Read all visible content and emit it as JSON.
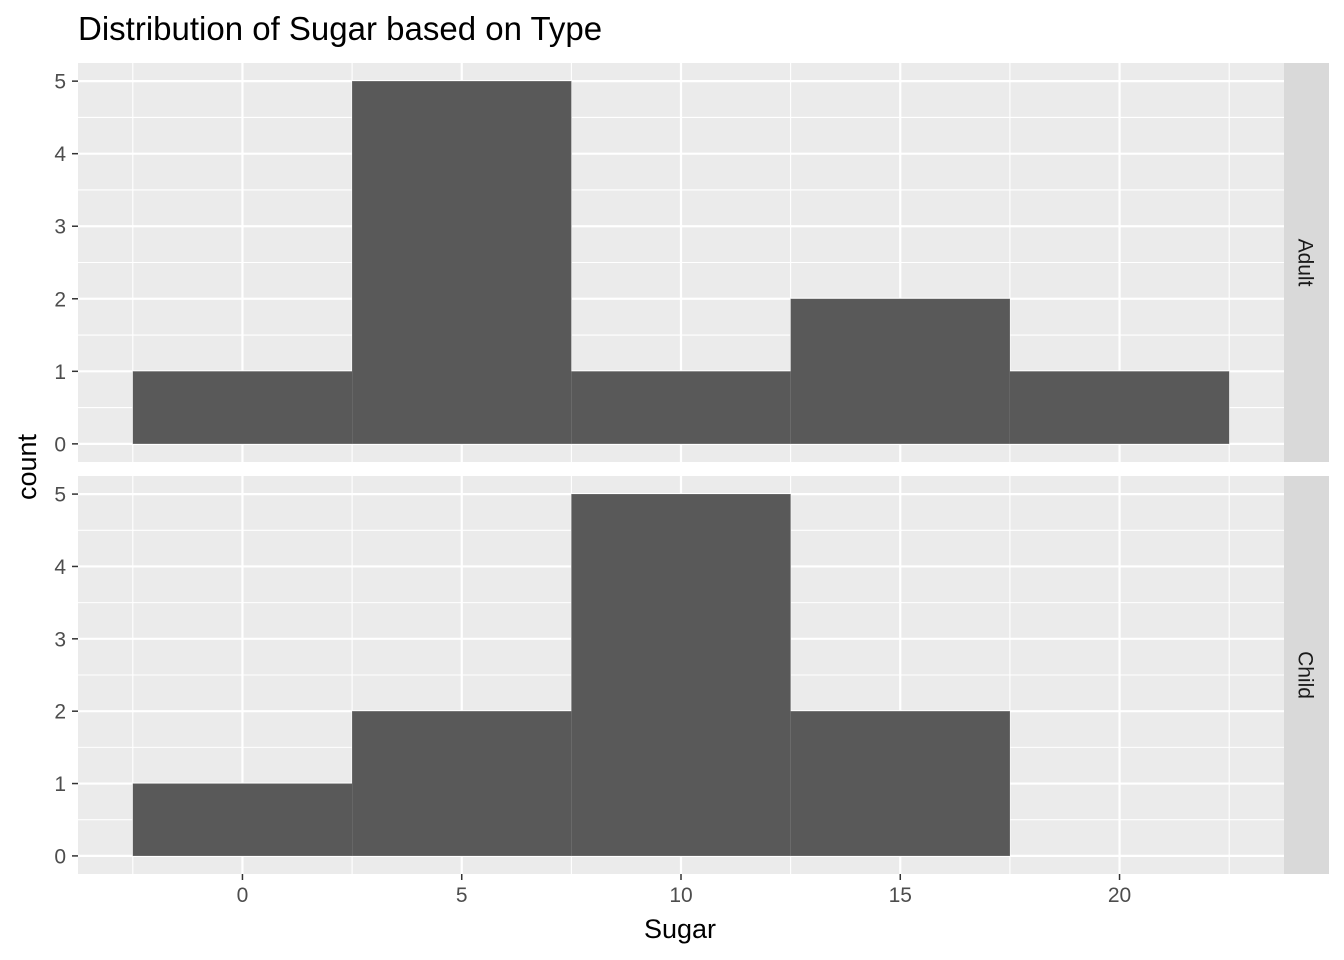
{
  "chart_data": {
    "type": "bar",
    "subtype": "faceted-histogram",
    "title": "Distribution of Sugar based on Type",
    "xlabel": "Sugar",
    "ylabel": "count",
    "xlim": [
      -3.75,
      23.75
    ],
    "ylim": [
      -0.25,
      5.25
    ],
    "x_ticks": [
      0,
      5,
      10,
      15,
      20
    ],
    "y_ticks": [
      0,
      1,
      2,
      3,
      4,
      5
    ],
    "bin_width": 5,
    "grid": true,
    "colors": {
      "bar": "#595959",
      "panel": "#ebebeb",
      "grid": "#ffffff",
      "strip": "#d9d9d9"
    },
    "facets": [
      {
        "label": "Adult",
        "bins": [
          {
            "x_start": -2.5,
            "x_end": 2.5,
            "count": 1
          },
          {
            "x_start": 2.5,
            "x_end": 7.5,
            "count": 5
          },
          {
            "x_start": 7.5,
            "x_end": 12.5,
            "count": 1
          },
          {
            "x_start": 12.5,
            "x_end": 17.5,
            "count": 2
          },
          {
            "x_start": 17.5,
            "x_end": 22.5,
            "count": 1
          }
        ]
      },
      {
        "label": "Child",
        "bins": [
          {
            "x_start": -2.5,
            "x_end": 2.5,
            "count": 1
          },
          {
            "x_start": 2.5,
            "x_end": 7.5,
            "count": 2
          },
          {
            "x_start": 7.5,
            "x_end": 12.5,
            "count": 5
          },
          {
            "x_start": 12.5,
            "x_end": 17.5,
            "count": 2
          },
          {
            "x_start": 17.5,
            "x_end": 22.5,
            "count": 0
          }
        ]
      }
    ]
  }
}
